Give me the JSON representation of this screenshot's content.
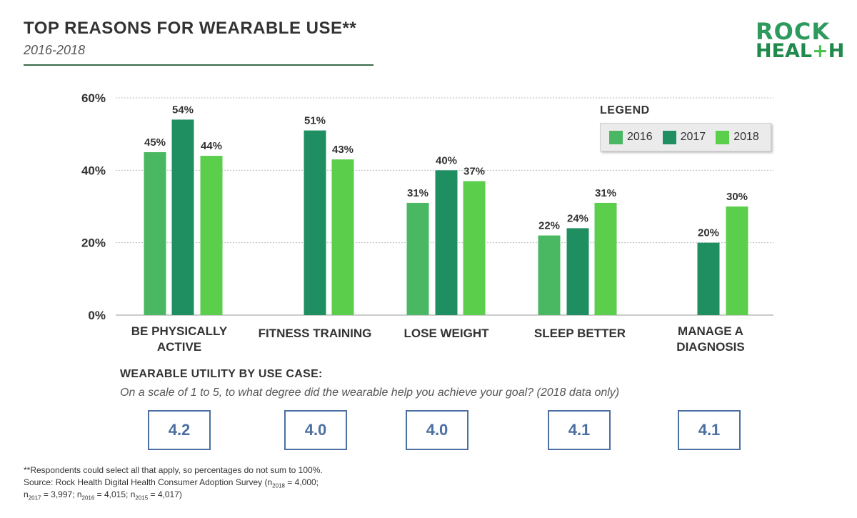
{
  "header": {
    "title": "TOP REASONS FOR WEARABLE USE**",
    "subtitle": "2016-2018",
    "logo_line1": "ROCK",
    "logo_line2_a": "HEAL",
    "logo_line2_plus": "+",
    "logo_line2_b": "H"
  },
  "colors": {
    "2016": "#4ab863",
    "2017": "#1f8f62",
    "2018": "#5bce4c",
    "accent_blue": "#4a6fa0",
    "grid": "#bdbdbd"
  },
  "legend": {
    "title": "LEGEND",
    "items": [
      "2016",
      "2017",
      "2018"
    ]
  },
  "chart_data": {
    "type": "bar",
    "title": "TOP REASONS FOR WEARABLE USE**",
    "subtitle": "2016-2018",
    "categories": [
      [
        "BE PHYSICALLY",
        "ACTIVE"
      ],
      [
        "FITNESS TRAINING"
      ],
      [
        "LOSE WEIGHT"
      ],
      [
        "SLEEP BETTER"
      ],
      [
        "MANAGE A",
        "DIAGNOSIS"
      ]
    ],
    "series": [
      {
        "name": "2016",
        "values": [
          45,
          null,
          31,
          22,
          null
        ]
      },
      {
        "name": "2017",
        "values": [
          54,
          51,
          40,
          24,
          20
        ]
      },
      {
        "name": "2018",
        "values": [
          44,
          43,
          37,
          31,
          30
        ]
      }
    ],
    "ylim": [
      0,
      60
    ],
    "yticks": [
      "0%",
      "20%",
      "40%",
      "60%"
    ],
    "ytick_values": [
      0,
      20,
      40,
      60
    ],
    "grid": true,
    "legend_position": "top-right",
    "value_suffix": "%"
  },
  "utility": {
    "heading": "WEARABLE UTILITY BY USE CASE:",
    "question": "On a scale of 1 to 5, to what degree did the wearable help you achieve your goal? (2018 data only)",
    "scores": [
      "4.2",
      "4.0",
      "4.0",
      "4.1",
      "4.1"
    ]
  },
  "footnote": {
    "line1": "**Respondents could select all that apply, so percentages do not sum to 100%.",
    "line2_prefix": "Source: Rock Health Digital Health Consumer Adoption Survey (n",
    "n2018_sub": "2018",
    "n2018_val": " = 4,000;",
    "n2017_prefix": "n",
    "n2017_sub": "2017",
    "n2017_val": " = 3,997; n",
    "n2016_sub": "2016",
    "n2016_val": " = 4,015; n",
    "n2015_sub": "2015",
    "n2015_val": " = 4,017)"
  }
}
